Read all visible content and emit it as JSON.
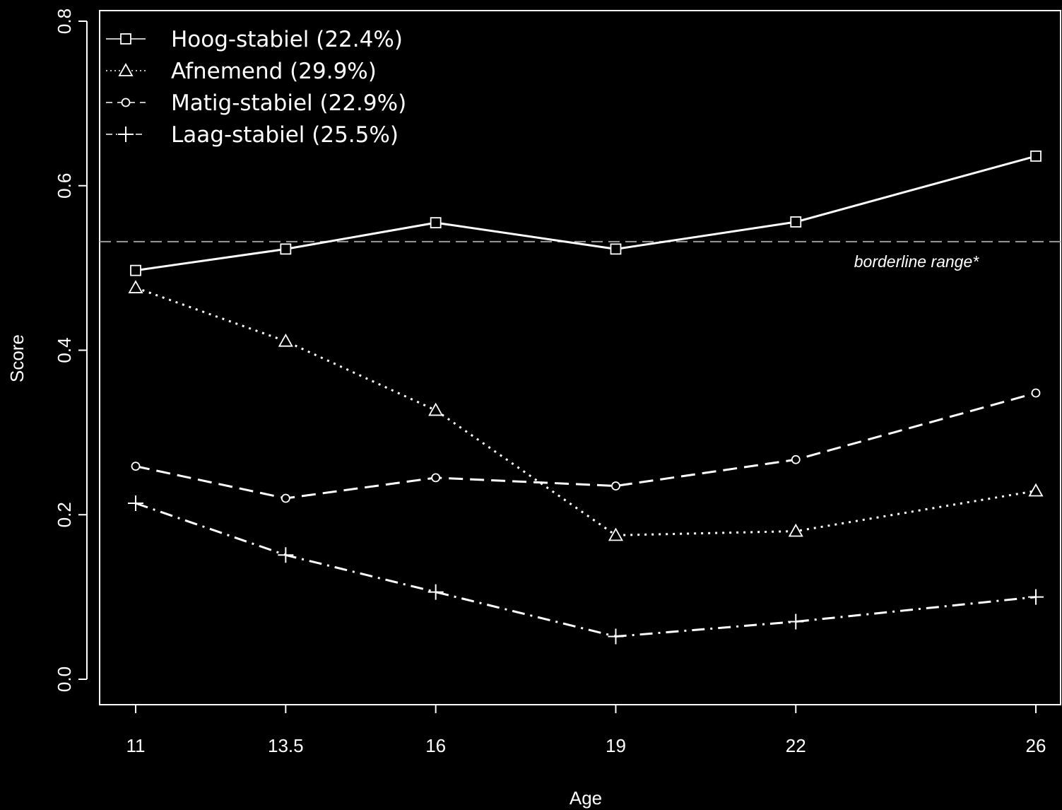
{
  "chart_data": {
    "type": "line",
    "xlabel": "Age",
    "ylabel": "Score",
    "x": [
      11,
      13.5,
      16,
      19,
      22,
      26
    ],
    "x_tick_labels": [
      "11",
      "13.5",
      "16",
      "19",
      "22",
      "26"
    ],
    "y_ticks": [
      "0.0",
      "0.2",
      "0.4",
      "0.6",
      "0.8"
    ],
    "xlim": [
      11,
      26
    ],
    "ylim": [
      0,
      0.8
    ],
    "grid": false,
    "legend_position": "top-left",
    "colors": {
      "background": "#000000",
      "foreground": "#ffffff",
      "reference_line": "#9a9a9a"
    },
    "series": [
      {
        "name": "Hoog-stabiel (22.4%)",
        "marker": "square",
        "line_style": "solid",
        "values": [
          0.497,
          0.523,
          0.555,
          0.523,
          0.556,
          0.636
        ]
      },
      {
        "name": "Afnemend (29.9%)",
        "marker": "triangle",
        "line_style": "dotted",
        "values": [
          0.476,
          0.411,
          0.327,
          0.175,
          0.18,
          0.229
        ]
      },
      {
        "name": "Matig-stabiel (22.9%)",
        "marker": "circle",
        "line_style": "dashed",
        "values": [
          0.259,
          0.22,
          0.245,
          0.235,
          0.267,
          0.348
        ]
      },
      {
        "name": "Laag-stabiel (25.5%)",
        "marker": "plus",
        "line_style": "dotdash",
        "values": [
          0.214,
          0.151,
          0.106,
          0.052,
          0.07,
          0.1
        ]
      }
    ],
    "reference_line": {
      "y": 0.532,
      "label": "borderline range*"
    }
  }
}
